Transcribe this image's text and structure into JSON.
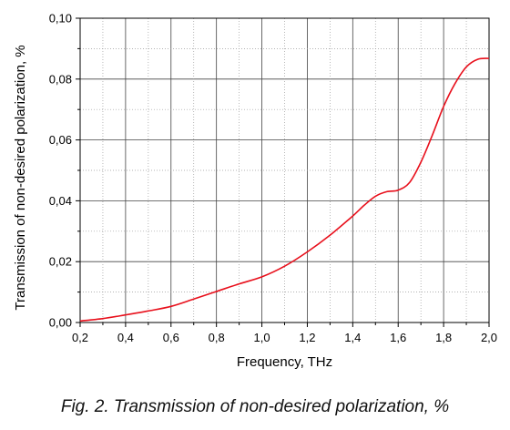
{
  "chart_data": {
    "type": "line",
    "xlabel": "Frequency, THz",
    "ylabel": "Transmission of non-desired polarization, %",
    "xlim": [
      0.2,
      2.0
    ],
    "ylim": [
      0.0,
      0.1
    ],
    "x_ticks": [
      "0,2",
      "0,4",
      "0,6",
      "0,8",
      "1,0",
      "1,2",
      "1,4",
      "1,6",
      "1,8",
      "2,0"
    ],
    "y_ticks": [
      "0,00",
      "0,02",
      "0,04",
      "0,06",
      "0,08",
      "0,10"
    ],
    "x_tick_values": [
      0.2,
      0.4,
      0.6,
      0.8,
      1.0,
      1.2,
      1.4,
      1.6,
      1.8,
      2.0
    ],
    "y_tick_values": [
      0.0,
      0.02,
      0.04,
      0.06,
      0.08,
      0.1
    ],
    "grid": true,
    "legend": "none",
    "series": [
      {
        "color": "#e8101c",
        "x": [
          0.2,
          0.3,
          0.4,
          0.5,
          0.6,
          0.7,
          0.8,
          0.9,
          1.0,
          1.1,
          1.2,
          1.3,
          1.4,
          1.45,
          1.5,
          1.55,
          1.6,
          1.65,
          1.7,
          1.75,
          1.8,
          1.85,
          1.9,
          1.95,
          2.0
        ],
        "y": [
          0.0005,
          0.0013,
          0.0025,
          0.0038,
          0.0053,
          0.0077,
          0.0102,
          0.0127,
          0.015,
          0.0185,
          0.0232,
          0.0287,
          0.035,
          0.0385,
          0.0415,
          0.043,
          0.0435,
          0.046,
          0.0527,
          0.0615,
          0.071,
          0.0785,
          0.084,
          0.0865,
          0.0868
        ]
      }
    ]
  },
  "caption": "Fig. 2. Transmission of non-desired polarization, %"
}
